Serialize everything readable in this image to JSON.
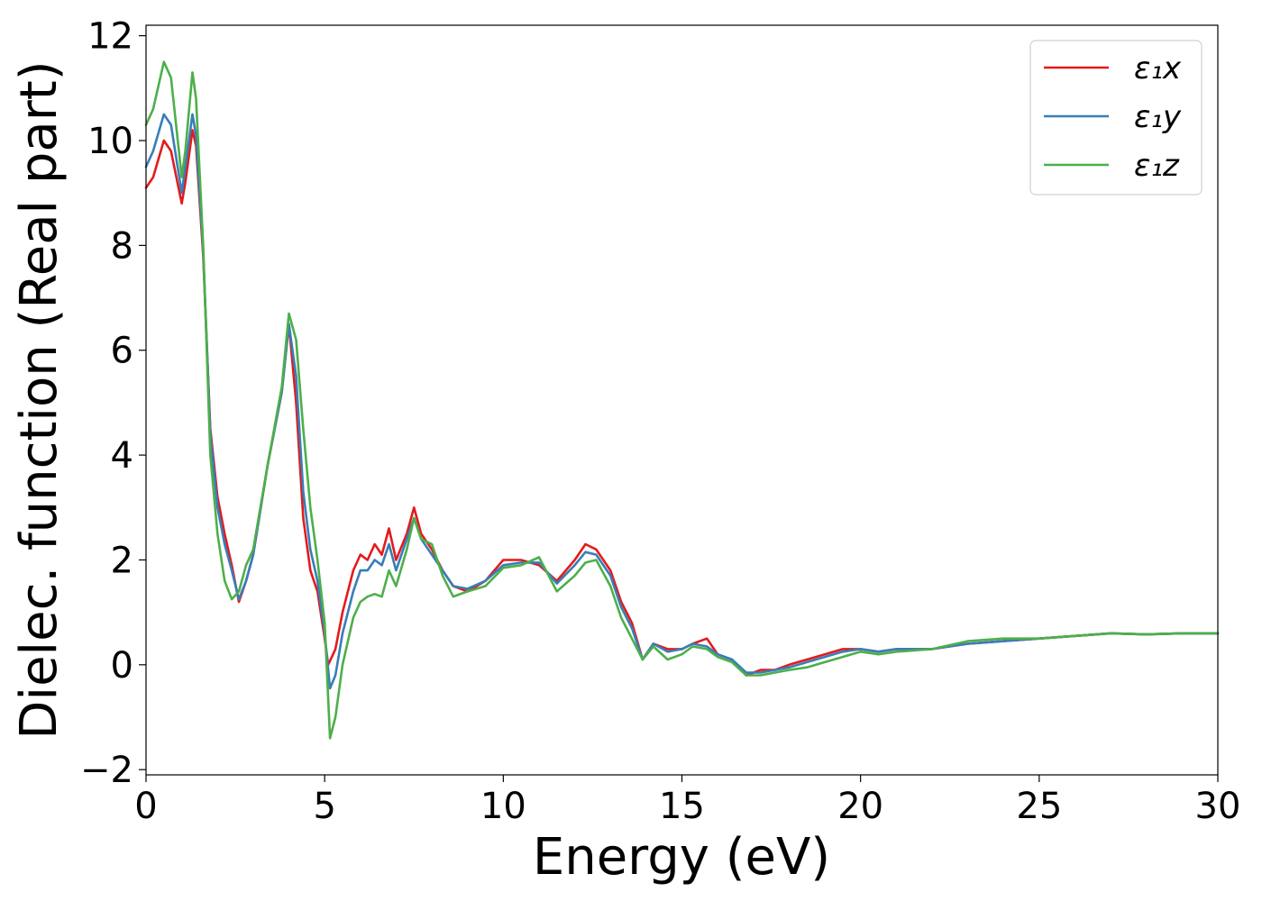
{
  "chart_data": {
    "type": "line",
    "title": "",
    "xlabel": "Energy (eV)",
    "ylabel": "Dielec. function (Real part)",
    "xlim": [
      0,
      30
    ],
    "ylim": [
      -2.1,
      12.2
    ],
    "xticks": [
      0,
      5,
      10,
      15,
      20,
      25,
      30
    ],
    "xtick_labels": [
      "0",
      "5",
      "10",
      "15",
      "20",
      "25",
      "30"
    ],
    "yticks": [
      -2,
      0,
      2,
      4,
      6,
      8,
      10,
      12
    ],
    "ytick_labels": [
      "−2",
      "0",
      "2",
      "4",
      "6",
      "8",
      "10",
      "12"
    ],
    "grid": false,
    "legend_position": "top-right",
    "series": [
      {
        "name": "ε₁x",
        "color": "#e41a1c",
        "x": [
          0,
          0.2,
          0.5,
          0.7,
          1.0,
          1.1,
          1.3,
          1.4,
          1.6,
          1.8,
          2.0,
          2.2,
          2.4,
          2.6,
          2.8,
          3.0,
          3.4,
          3.8,
          4.0,
          4.2,
          4.4,
          4.6,
          4.8,
          5.0,
          5.1,
          5.3,
          5.5,
          5.8,
          6.0,
          6.2,
          6.4,
          6.6,
          6.8,
          7.0,
          7.3,
          7.5,
          7.7,
          8.0,
          8.3,
          8.6,
          9.0,
          9.5,
          10.0,
          10.5,
          11.0,
          11.5,
          12.0,
          12.3,
          12.6,
          13.0,
          13.3,
          13.6,
          13.9,
          14.2,
          14.6,
          15.0,
          15.3,
          15.7,
          16.0,
          16.4,
          16.8,
          17.2,
          17.6,
          18.0,
          18.5,
          19.0,
          19.5,
          20.0,
          20.5,
          21.0,
          22.0,
          23.0,
          24.0,
          25.0,
          26.0,
          27.0,
          28.0,
          29.0,
          30.0
        ],
        "y": [
          9.1,
          9.3,
          10.0,
          9.8,
          8.8,
          9.2,
          10.2,
          9.9,
          7.8,
          4.5,
          3.2,
          2.5,
          1.9,
          1.2,
          1.6,
          2.1,
          3.8,
          5.2,
          6.5,
          5.0,
          2.8,
          1.8,
          1.4,
          0.5,
          0.0,
          0.3,
          1.0,
          1.8,
          2.1,
          2.0,
          2.3,
          2.1,
          2.6,
          2.0,
          2.5,
          3.0,
          2.5,
          2.2,
          1.8,
          1.5,
          1.4,
          1.6,
          2.0,
          2.0,
          1.9,
          1.6,
          2.0,
          2.3,
          2.2,
          1.8,
          1.2,
          0.8,
          0.1,
          0.4,
          0.3,
          0.3,
          0.4,
          0.5,
          0.2,
          0.1,
          -0.2,
          -0.1,
          -0.1,
          0.0,
          0.1,
          0.2,
          0.3,
          0.3,
          0.25,
          0.3,
          0.3,
          0.4,
          0.45,
          0.5,
          0.55,
          0.6,
          0.58,
          0.6,
          0.6
        ]
      },
      {
        "name": "ε₁y",
        "color": "#377eb8",
        "x": [
          0,
          0.2,
          0.5,
          0.7,
          1.0,
          1.1,
          1.3,
          1.4,
          1.6,
          1.8,
          2.0,
          2.2,
          2.4,
          2.6,
          2.8,
          3.0,
          3.4,
          3.8,
          4.0,
          4.2,
          4.4,
          4.6,
          4.8,
          5.0,
          5.15,
          5.3,
          5.5,
          5.8,
          6.0,
          6.2,
          6.4,
          6.6,
          6.8,
          7.0,
          7.3,
          7.5,
          7.7,
          8.0,
          8.3,
          8.6,
          9.0,
          9.5,
          10.0,
          10.5,
          11.0,
          11.5,
          12.0,
          12.3,
          12.6,
          13.0,
          13.3,
          13.6,
          13.9,
          14.2,
          14.6,
          15.0,
          15.3,
          15.7,
          16.0,
          16.4,
          16.8,
          17.2,
          17.6,
          18.0,
          18.5,
          19.0,
          19.5,
          20.0,
          20.5,
          21.0,
          22.0,
          23.0,
          24.0,
          25.0,
          26.0,
          27.0,
          28.0,
          29.0,
          30.0
        ],
        "y": [
          9.5,
          9.8,
          10.5,
          10.3,
          9.0,
          9.5,
          10.5,
          10.1,
          7.9,
          4.4,
          3.0,
          2.3,
          1.8,
          1.25,
          1.6,
          2.1,
          3.8,
          5.2,
          6.5,
          5.5,
          3.3,
          2.2,
          1.6,
          0.6,
          -0.45,
          -0.2,
          0.6,
          1.4,
          1.8,
          1.8,
          2.0,
          1.9,
          2.3,
          1.8,
          2.4,
          2.8,
          2.4,
          2.1,
          1.8,
          1.5,
          1.45,
          1.6,
          1.9,
          1.95,
          1.95,
          1.55,
          1.9,
          2.15,
          2.1,
          1.7,
          1.1,
          0.7,
          0.1,
          0.4,
          0.25,
          0.3,
          0.4,
          0.35,
          0.2,
          0.1,
          -0.15,
          -0.15,
          -0.1,
          -0.05,
          0.05,
          0.15,
          0.25,
          0.3,
          0.25,
          0.3,
          0.3,
          0.4,
          0.45,
          0.5,
          0.55,
          0.6,
          0.58,
          0.6,
          0.6
        ]
      },
      {
        "name": "ε₁z",
        "color": "#4daf4a",
        "x": [
          0,
          0.2,
          0.5,
          0.7,
          1.0,
          1.1,
          1.3,
          1.4,
          1.6,
          1.8,
          2.0,
          2.2,
          2.4,
          2.6,
          2.8,
          3.0,
          3.4,
          3.8,
          4.0,
          4.2,
          4.4,
          4.6,
          4.8,
          5.0,
          5.15,
          5.3,
          5.5,
          5.8,
          6.0,
          6.2,
          6.4,
          6.6,
          6.8,
          7.0,
          7.3,
          7.5,
          7.7,
          8.0,
          8.3,
          8.6,
          9.0,
          9.5,
          10.0,
          10.5,
          11.0,
          11.5,
          12.0,
          12.3,
          12.6,
          13.0,
          13.3,
          13.6,
          13.9,
          14.2,
          14.6,
          15.0,
          15.3,
          15.7,
          16.0,
          16.4,
          16.8,
          17.2,
          17.6,
          18.0,
          18.5,
          19.0,
          19.5,
          20.0,
          20.5,
          21.0,
          22.0,
          23.0,
          24.0,
          25.0,
          26.0,
          27.0,
          28.0,
          29.0,
          30.0
        ],
        "y": [
          10.3,
          10.6,
          11.5,
          11.2,
          9.3,
          9.8,
          11.3,
          10.8,
          8.0,
          4.0,
          2.5,
          1.6,
          1.25,
          1.4,
          1.9,
          2.2,
          3.8,
          5.3,
          6.7,
          6.2,
          4.5,
          3.0,
          2.0,
          0.8,
          -1.4,
          -1.0,
          0.0,
          0.9,
          1.2,
          1.3,
          1.35,
          1.3,
          1.8,
          1.5,
          2.2,
          2.8,
          2.4,
          2.3,
          1.7,
          1.3,
          1.4,
          1.5,
          1.85,
          1.9,
          2.05,
          1.4,
          1.7,
          1.95,
          2.0,
          1.5,
          0.9,
          0.5,
          0.1,
          0.35,
          0.1,
          0.2,
          0.35,
          0.3,
          0.15,
          0.05,
          -0.2,
          -0.2,
          -0.15,
          -0.1,
          -0.05,
          0.05,
          0.15,
          0.25,
          0.2,
          0.25,
          0.3,
          0.45,
          0.5,
          0.5,
          0.55,
          0.6,
          0.58,
          0.6,
          0.6
        ]
      }
    ]
  }
}
